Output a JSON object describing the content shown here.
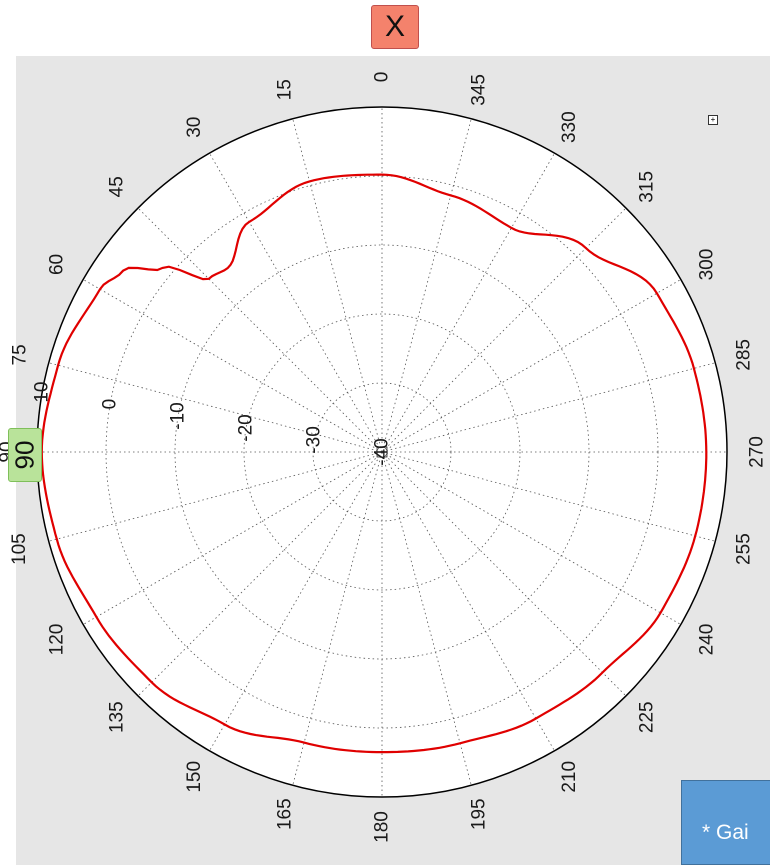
{
  "x_label": "X",
  "y_label": "90",
  "note_text": "* Gai",
  "zoom_icon": "zoom-icon",
  "colors": {
    "curve": "#e00000",
    "panel": "#e6e6e6",
    "x_label_bg": "#f4826c",
    "y_label_bg": "#b9e39a",
    "note_bg": "#5b9bd5"
  },
  "chart_data": {
    "type": "line",
    "coordinate_system": "polar",
    "angle_ticks": [
      "0",
      "15",
      "30",
      "45",
      "60",
      "75",
      "90",
      "105",
      "120",
      "135",
      "150",
      "165",
      "180",
      "195",
      "210",
      "225",
      "240",
      "255",
      "270",
      "285",
      "300",
      "315",
      "330",
      "345"
    ],
    "radial_ticks": [
      "-40",
      "-30",
      "-20",
      "-10",
      "0",
      "10"
    ],
    "rlim": [
      -40,
      10
    ],
    "grid": true,
    "series": [
      {
        "x": [
          0,
          15,
          30,
          40,
          45,
          50,
          55,
          60,
          75,
          90,
          105,
          120,
          135,
          150,
          165,
          180,
          195,
          210,
          225,
          240,
          255,
          270,
          285,
          300,
          315,
          330,
          345
        ],
        "y": [
          0.2,
          0.6,
          -1.5,
          -5.2,
          -4.5,
          1.5,
          5.8,
          7.2,
          8.6,
          9.3,
          8.8,
          7.8,
          7.2,
          5.6,
          3.6,
          3.5,
          3.7,
          4.6,
          5.2,
          6.6,
          7.0,
          7.0,
          6.8,
          6.0,
          1.8,
          -2.5,
          -1.5
        ]
      }
    ]
  }
}
